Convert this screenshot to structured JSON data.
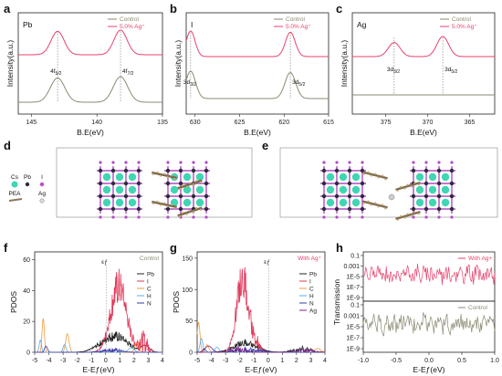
{
  "panels": {
    "a": {
      "letter": "a",
      "element": "Pb",
      "xlabel": "B.E(eV)",
      "ylabel": "Intensity(a.u.)",
      "xlim": [
        146,
        135
      ],
      "xticks": [
        145,
        140,
        135
      ],
      "legend": [
        "Control",
        "5.0% Ag⁺"
      ],
      "peak_labels": [
        {
          "x": 143.0,
          "main": "4f",
          "sub": "5/2"
        },
        {
          "x": 138.2,
          "main": "4f",
          "sub": "7/2"
        }
      ],
      "markers": [
        143.0,
        138.2
      ]
    },
    "b": {
      "letter": "b",
      "element": "I",
      "xlabel": "B.E(eV)",
      "ylabel": "Intensity(a.u.)",
      "xlim": [
        631,
        615
      ],
      "xticks": [
        630,
        625,
        620,
        615
      ],
      "legend": [
        "Control",
        "5.0% Ag⁺"
      ],
      "peak_labels": [
        {
          "x": 630.5,
          "main": "3d",
          "sub": "3/2"
        },
        {
          "x": 619.3,
          "main": "3d",
          "sub": "5/2"
        }
      ],
      "markers": [
        630.5,
        619.3
      ]
    },
    "c": {
      "letter": "c",
      "element": "Ag",
      "xlabel": "B.E(eV)",
      "ylabel": "Intensity(a.u.)",
      "xlim": [
        379,
        362
      ],
      "xticks": [
        375,
        370,
        365
      ],
      "legend": [
        "Control",
        "5.0% Ag⁺"
      ],
      "peak_labels": [
        {
          "x": 374.0,
          "main": "3d",
          "sub": "3/2"
        },
        {
          "x": 368.2,
          "main": "3d",
          "sub": "5/2"
        }
      ],
      "markers": [
        374.0,
        368.2
      ]
    },
    "d": {
      "letter": "d",
      "legend": [
        {
          "label": "Cs",
          "color": "#3fd6b3"
        },
        {
          "label": "Pb",
          "color": "#2b2b3a"
        },
        {
          "label": "I",
          "color": "#c04ad0"
        },
        {
          "label": "PEA",
          "color": "#8a7a5a"
        },
        {
          "label": "Ag",
          "color": "#bbbbbb"
        }
      ]
    },
    "e": {
      "letter": "e"
    },
    "f": {
      "letter": "f",
      "xlabel": "E-Eƒ(eV)",
      "ylabel": "PDOS",
      "xlim": [
        -5,
        4
      ],
      "ylim": [
        0,
        65
      ],
      "xticks": [
        -5,
        -4,
        -3,
        -2,
        -1,
        0,
        1,
        2,
        3,
        4
      ],
      "yticks": [
        0,
        20,
        40,
        60
      ],
      "tag": "Control",
      "fermi": "εƒ",
      "legend": [
        {
          "label": "Pb",
          "color": "#222222"
        },
        {
          "label": "I",
          "color": "#e03a5a"
        },
        {
          "label": "C",
          "color": "#f39a3a"
        },
        {
          "label": "H",
          "color": "#5aaee8"
        },
        {
          "label": "N",
          "color": "#3a3aa8"
        }
      ]
    },
    "g": {
      "letter": "g",
      "xlabel": "E-Eƒ(eV)",
      "ylabel": "PDOS",
      "xlim": [
        -5,
        4
      ],
      "ylim": [
        0,
        160
      ],
      "xticks": [
        -5,
        -4,
        -3,
        -2,
        -1,
        0,
        1,
        2,
        3,
        4
      ],
      "yticks": [
        0,
        50,
        100,
        150
      ],
      "tag": "With Ag⁺",
      "fermi": "εƒ",
      "legend": [
        {
          "label": "Pb",
          "color": "#222222"
        },
        {
          "label": "I",
          "color": "#e03a5a"
        },
        {
          "label": "C",
          "color": "#f39a3a"
        },
        {
          "label": "H",
          "color": "#5aaee8"
        },
        {
          "label": "N",
          "color": "#3a3aa8"
        },
        {
          "label": "Ag",
          "color": "#7a2a8a"
        }
      ]
    },
    "h": {
      "letter": "h",
      "xlabel": "E-Eƒ(eV)",
      "ylabel": "Transmission",
      "xlim": [
        -1.0,
        1.0
      ],
      "xticks": [
        -1.0,
        -0.5,
        0.0,
        0.5,
        1.0
      ],
      "top_yticks": [
        "0.1",
        "0.001",
        "1E-5",
        "1E-7",
        "1E-9"
      ],
      "bottom_yticks": [
        "0.1",
        "0.001",
        "1E-5",
        "1E-7",
        "1E-9"
      ],
      "top_legend": "With Ag+",
      "bottom_legend": "Control"
    }
  },
  "colors": {
    "control": "#8b8a73",
    "ag": "#e8426c",
    "cs": "#3fd6b3",
    "pb": "#2b2b3a",
    "iodine": "#b14cc4"
  }
}
